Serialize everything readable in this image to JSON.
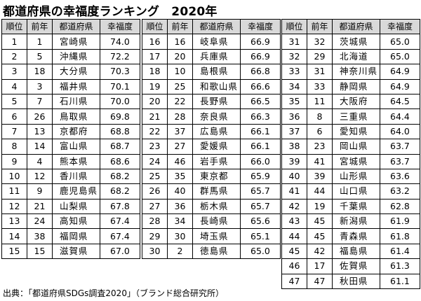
{
  "title": "都道府県の幸福度ランキング　2020年",
  "headers": [
    "順位",
    "前年",
    "都道府県",
    "幸福度"
  ],
  "columns": [
    [
      [
        "1",
        "1",
        "宮崎県",
        "74.0"
      ],
      [
        "2",
        "5",
        "沖縄県",
        "72.2"
      ],
      [
        "3",
        "18",
        "大分県",
        "70.3"
      ],
      [
        "4",
        "3",
        "福井県",
        "70.1"
      ],
      [
        "5",
        "7",
        "石川県",
        "70.0"
      ],
      [
        "6",
        "26",
        "鳥取県",
        "69.8"
      ],
      [
        "7",
        "13",
        "京都府",
        "68.8"
      ],
      [
        "8",
        "14",
        "富山県",
        "68.7"
      ],
      [
        "9",
        "4",
        "熊本県",
        "68.6"
      ],
      [
        "10",
        "12",
        "香川県",
        "68.2"
      ],
      [
        "11",
        "9",
        "鹿児島県",
        "68.2"
      ],
      [
        "12",
        "21",
        "山梨県",
        "67.8"
      ],
      [
        "13",
        "24",
        "高知県",
        "67.4"
      ],
      [
        "14",
        "38",
        "福岡県",
        "67.4"
      ],
      [
        "15",
        "15",
        "滋賀県",
        "67.0"
      ]
    ],
    [
      [
        "16",
        "16",
        "岐阜県",
        "66.9"
      ],
      [
        "17",
        "20",
        "兵庫県",
        "66.9"
      ],
      [
        "18",
        "10",
        "島根県",
        "66.8"
      ],
      [
        "19",
        "25",
        "和歌山県",
        "66.6"
      ],
      [
        "20",
        "22",
        "長野県",
        "66.5"
      ],
      [
        "21",
        "28",
        "奈良県",
        "66.3"
      ],
      [
        "22",
        "37",
        "広島県",
        "66.1"
      ],
      [
        "23",
        "27",
        "愛媛県",
        "66.1"
      ],
      [
        "24",
        "46",
        "岩手県",
        "66.0"
      ],
      [
        "25",
        "35",
        "東京都",
        "65.9"
      ],
      [
        "26",
        "40",
        "群馬県",
        "65.7"
      ],
      [
        "27",
        "36",
        "栃木県",
        "65.7"
      ],
      [
        "28",
        "34",
        "長崎県",
        "65.6"
      ],
      [
        "29",
        "30",
        "埼玉県",
        "65.1"
      ],
      [
        "30",
        "2",
        "徳島県",
        "65.0"
      ]
    ],
    [
      [
        "31",
        "32",
        "茨城県",
        "65.0"
      ],
      [
        "32",
        "29",
        "北海道",
        "65.0"
      ],
      [
        "33",
        "31",
        "神奈川県",
        "64.9"
      ],
      [
        "34",
        "33",
        "静岡県",
        "64.9"
      ],
      [
        "35",
        "11",
        "大阪府",
        "64.5"
      ],
      [
        "36",
        "8",
        "三重県",
        "64.4"
      ],
      [
        "37",
        "6",
        "愛知県",
        "64.0"
      ],
      [
        "38",
        "23",
        "岡山県",
        "63.7"
      ],
      [
        "39",
        "41",
        "宮城県",
        "63.7"
      ],
      [
        "40",
        "39",
        "山形県",
        "63.6"
      ],
      [
        "41",
        "44",
        "山口県",
        "63.2"
      ],
      [
        "42",
        "19",
        "千葉県",
        "62.8"
      ],
      [
        "43",
        "45",
        "新潟県",
        "61.9"
      ],
      [
        "44",
        "45",
        "青森県",
        "61.8"
      ],
      [
        "45",
        "42",
        "福島県",
        "61.4"
      ],
      [
        "46",
        "17",
        "佐賀県",
        "61.3"
      ],
      [
        "47",
        "47",
        "秋田県",
        "61.1"
      ]
    ]
  ],
  "source": "出典：「都道府県SDGs調査2020」（ブランド総合研究所）"
}
